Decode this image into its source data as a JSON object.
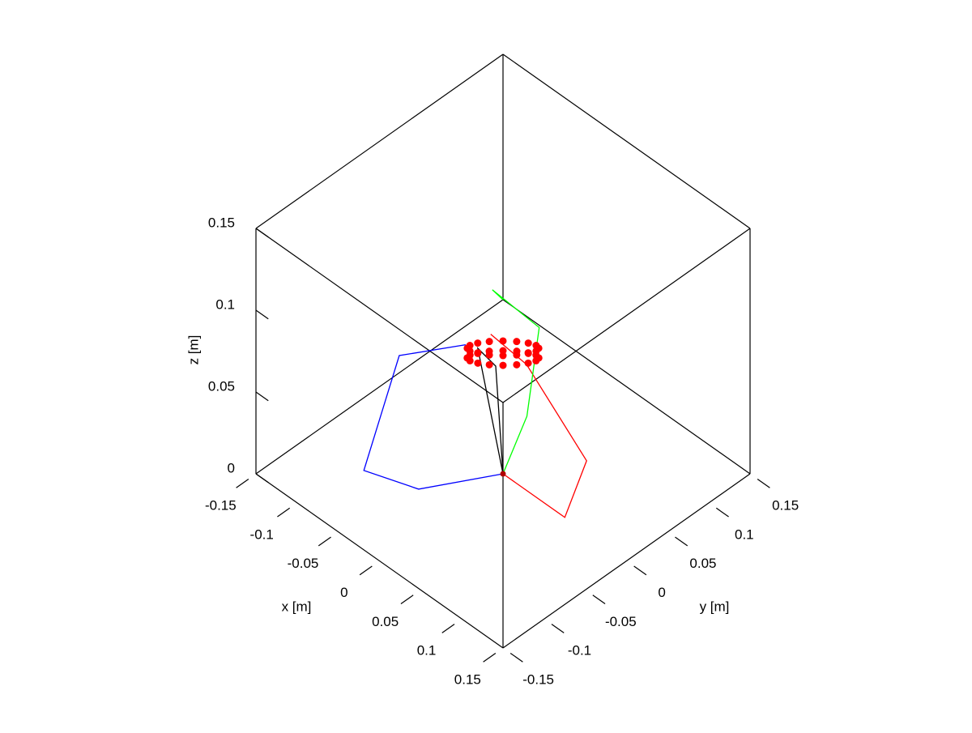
{
  "chart_data": {
    "type": "line3d",
    "xlabel": "x [m]",
    "ylabel": "y [m]",
    "zlabel": "z [m]",
    "xlim": [
      -0.15,
      0.15
    ],
    "ylim": [
      -0.15,
      0.15
    ],
    "zlim": [
      0,
      0.15
    ],
    "xticks": [
      -0.15,
      -0.1,
      -0.05,
      0,
      0.05,
      0.1,
      0.15
    ],
    "yticks": [
      -0.15,
      -0.1,
      -0.05,
      0,
      0.05,
      0.1,
      0.15
    ],
    "zticks": [
      0,
      0.05,
      0.1,
      0.15
    ],
    "grid": false,
    "series": [
      {
        "color": "#0000ff",
        "mode": "lines",
        "x": [
          0,
          0,
          0,
          0,
          0
        ],
        "y": [
          0,
          -0.1025,
          -0.169,
          -0.126,
          -0.0453
        ],
        "z": [
          0,
          0.027,
          0.062,
          0.117,
          0.095
        ]
      },
      {
        "color": "#ff0000",
        "mode": "lines",
        "x": [
          0,
          0.075,
          0.1015,
          0.0286,
          -0.015
        ],
        "y": [
          0,
          0,
          0,
          0,
          0
        ],
        "z": [
          0,
          0,
          0.044,
          0.077,
          0.08
        ]
      },
      {
        "color": "#00ff00",
        "mode": "lines",
        "x": [
          0,
          -0.035,
          -0.104,
          -0.165,
          -0.15
        ],
        "y": [
          0,
          0.064,
          0.148,
          0.152,
          0.15
        ],
        "z": [
          0,
          0,
          0,
          0,
          0
        ]
      },
      {
        "color": "#000000",
        "mode": "lines",
        "x": [
          0,
          -0.0107,
          0.0155,
          0
        ],
        "y": [
          0,
          -0.0199,
          -0.0244,
          0
        ],
        "z": [
          0,
          0.08,
          0.08,
          0
        ]
      },
      {
        "color": "#ff0000",
        "mode": "markers",
        "x": [
          0.0263,
          0.0271,
          0.0244,
          0.0187,
          0.0109,
          0.0021,
          -0.0063,
          -0.0131,
          -0.0171,
          -0.0179,
          -0.0152,
          -0.0095,
          -0.0017,
          0.0071,
          0.0155,
          0.0223,
          0.0347,
          0.0354,
          0.0327,
          0.0271,
          0.0193,
          0.0105,
          0.0021,
          -0.0047,
          -0.0088,
          -0.0095,
          -0.0068,
          -0.0012,
          0.0067,
          0.0155,
          0.0238,
          0.0306
        ],
        "y": [
          0.0171,
          0.0131,
          0.0063,
          -0.0021,
          -0.0109,
          -0.0187,
          -0.0244,
          -0.0271,
          -0.0263,
          -0.0223,
          -0.0155,
          -0.0071,
          0.0017,
          0.0095,
          0.0152,
          0.0179,
          0.0088,
          0.0047,
          -0.0021,
          -0.0105,
          -0.0193,
          -0.0271,
          -0.0327,
          -0.0354,
          -0.0347,
          -0.0306,
          -0.0238,
          -0.0155,
          -0.0067,
          0.0012,
          0.0068,
          0.0095
        ],
        "z": [
          0.08,
          0.08,
          0.08,
          0.08,
          0.08,
          0.08,
          0.08,
          0.08,
          0.08,
          0.08,
          0.08,
          0.08,
          0.08,
          0.08,
          0.08,
          0.08,
          0.08,
          0.08,
          0.08,
          0.08,
          0.08,
          0.08,
          0.08,
          0.08,
          0.08,
          0.08,
          0.08,
          0.08,
          0.08,
          0.08,
          0.08,
          0.08
        ]
      },
      {
        "color": "#b00000",
        "mode": "markers",
        "x": [
          0
        ],
        "y": [
          0
        ],
        "z": [
          0
        ]
      }
    ]
  }
}
